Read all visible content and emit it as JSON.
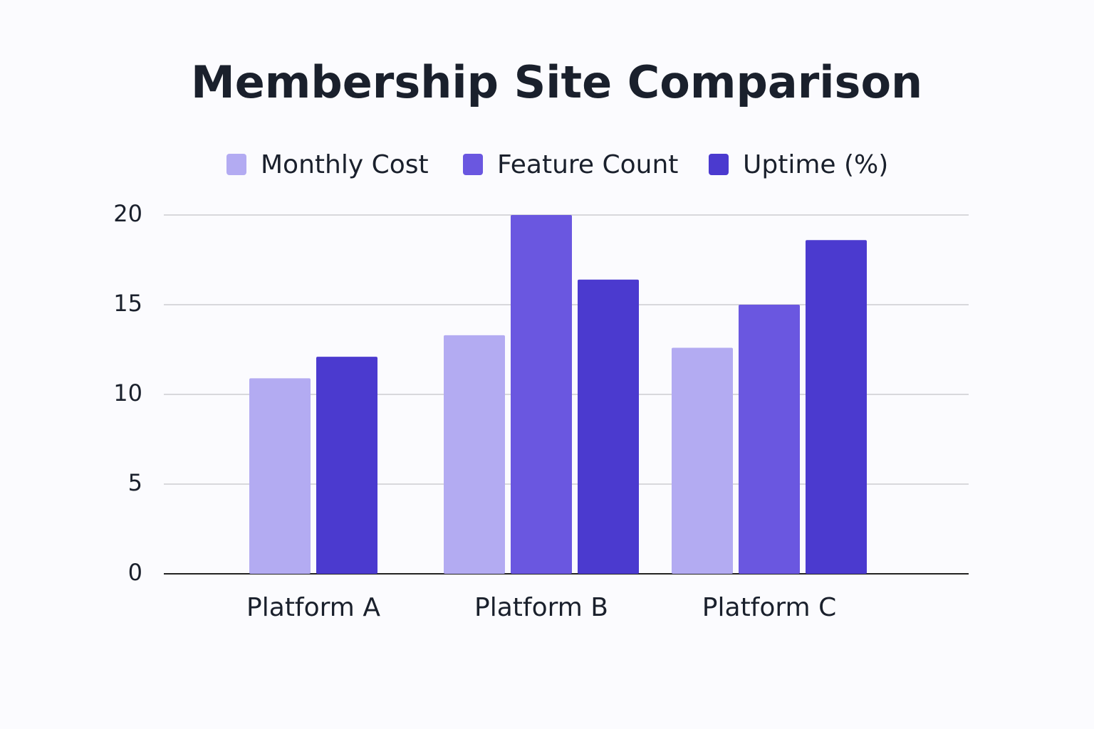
{
  "chart_data": {
    "type": "bar",
    "title": "Membership Site Comparison",
    "categories": [
      "Platform A",
      "Platform B",
      "Platform C"
    ],
    "series": [
      {
        "name": "Monthly Cost",
        "color": "#b3abf2",
        "values": [
          10.9,
          13.3,
          12.6
        ]
      },
      {
        "name": "Feature Count",
        "color": "#6a57e0",
        "values": [
          null,
          20,
          15
        ]
      },
      {
        "name": "Uptime (%)",
        "color": "#4b3acf",
        "values": [
          12.1,
          16.4,
          18.6
        ]
      }
    ],
    "ylim": [
      0,
      20
    ],
    "yticks": [
      0,
      5,
      10,
      15,
      20
    ],
    "grid": true
  }
}
